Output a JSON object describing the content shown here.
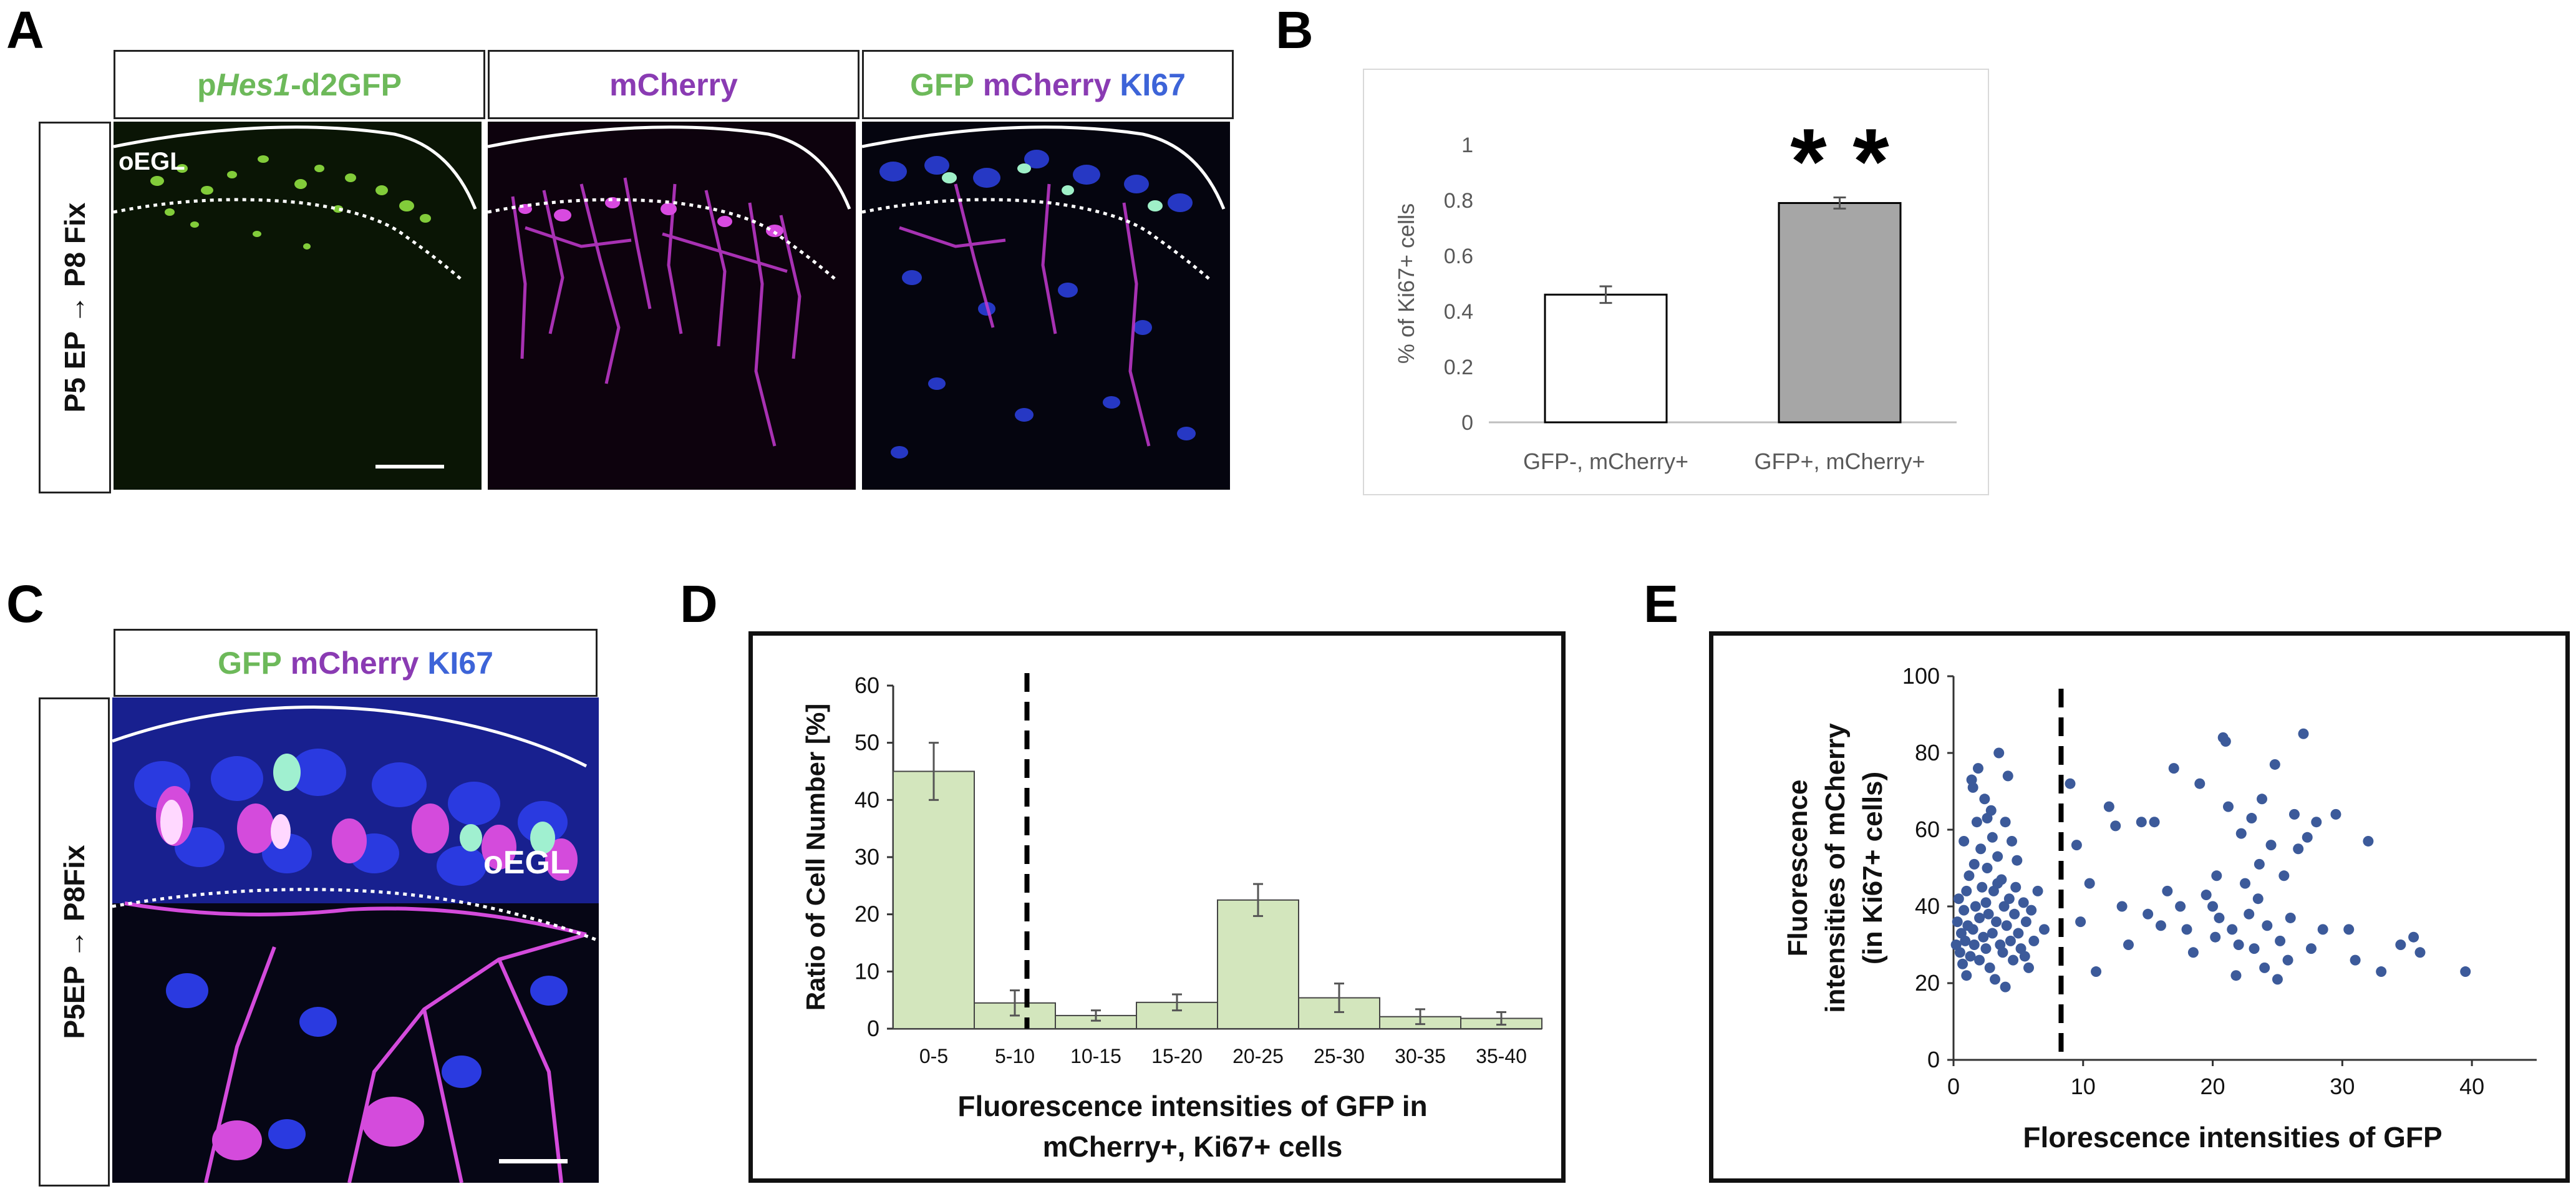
{
  "panels": {
    "A": {
      "letter": "A",
      "side_label": "P5 EP → P8 Fix",
      "col1_prefix": "p",
      "col1_italic": "Hes1",
      "col1_suffix": "-d2GFP",
      "col2": "mCherry",
      "col3_gfp": "GFP",
      "col3_mcherry": "mCherry",
      "col3_ki67": "KI67",
      "region_label": "oEGL"
    },
    "B": {
      "letter": "B",
      "significance": "* *"
    },
    "C": {
      "letter": "C",
      "side_label": "P5EP → P8Fix",
      "top_gfp": "GFP",
      "top_mcherry": "mCherry",
      "top_ki67": "KI67",
      "region_label": "oEGL"
    },
    "D": {
      "letter": "D"
    },
    "E": {
      "letter": "E"
    }
  },
  "colors": {
    "gfp_green": "#6db95a",
    "mcherry_purple": "#8a3bb3",
    "ki67_blue": "#3d64d8",
    "bar_B_gfp_neg": "#ffffff",
    "bar_B_gfp_pos": "#a6a6a6",
    "bar_D": "#d3e6bd",
    "scatter_E": "#3c5a9a"
  },
  "chart_data": [
    {
      "id": "B",
      "type": "bar",
      "categories": [
        "GFP-, mCherry+",
        "GFP+, mCherry+"
      ],
      "values": [
        0.46,
        0.79
      ],
      "errors": [
        0.03,
        0.02
      ],
      "ylabel": "% of Ki67+ cells",
      "ylim": [
        0,
        1
      ],
      "yticks": [
        "0",
        "0.2",
        "0.4",
        "0.6",
        "0.8",
        "1"
      ],
      "grid": false
    },
    {
      "id": "D",
      "type": "bar",
      "categories": [
        "0-5",
        "5-10",
        "10-15",
        "15-20",
        "20-25",
        "25-30",
        "30-35",
        "35-40"
      ],
      "values": [
        45,
        4.5,
        2.3,
        4.6,
        22.5,
        5.4,
        2.1,
        1.8
      ],
      "errors": [
        5,
        2.2,
        0.9,
        1.4,
        2.8,
        2.5,
        1.3,
        1.1
      ],
      "ylabel": "Ratio of Cell Number [%]",
      "xlabel_line1": "Fluorescence intensities of GFP in",
      "xlabel_line2": "mCherry+, Ki67+  cells",
      "ylim": [
        0,
        60
      ],
      "yticks": [
        "0",
        "10",
        "20",
        "30",
        "40",
        "50",
        "60"
      ],
      "threshold_between": [
        0,
        1
      ],
      "grid": false
    },
    {
      "id": "E",
      "type": "scatter",
      "xlabel": "Florescence intensities of GFP",
      "ylabel_line1": "Fluorescence",
      "ylabel_line2": "intensities of mCherry",
      "ylabel_line3": "(in Ki67+ cells)",
      "xlim": [
        0,
        45
      ],
      "ylim": [
        0,
        100
      ],
      "xticks": [
        "0",
        "10",
        "20",
        "30",
        "40"
      ],
      "yticks": [
        "0",
        "20",
        "40",
        "60",
        "80",
        "100"
      ],
      "threshold_x": 8.3,
      "grid": false,
      "points": [
        [
          0.2,
          30
        ],
        [
          0.3,
          36
        ],
        [
          0.4,
          42
        ],
        [
          0.5,
          28
        ],
        [
          0.6,
          33
        ],
        [
          0.7,
          25
        ],
        [
          0.8,
          39
        ],
        [
          0.9,
          31
        ],
        [
          1.0,
          44
        ],
        [
          1.0,
          22
        ],
        [
          1.1,
          35
        ],
        [
          1.2,
          48
        ],
        [
          1.3,
          27
        ],
        [
          1.4,
          73
        ],
        [
          1.5,
          71
        ],
        [
          1.5,
          34
        ],
        [
          1.6,
          30
        ],
        [
          1.7,
          40
        ],
        [
          1.8,
          62
        ],
        [
          1.9,
          76
        ],
        [
          2.0,
          37
        ],
        [
          2.0,
          26
        ],
        [
          2.1,
          55
        ],
        [
          2.2,
          45
        ],
        [
          2.3,
          32
        ],
        [
          2.4,
          68
        ],
        [
          2.5,
          29
        ],
        [
          2.5,
          41
        ],
        [
          2.6,
          50
        ],
        [
          2.7,
          38
        ],
        [
          2.8,
          24
        ],
        [
          2.9,
          65
        ],
        [
          3.0,
          33
        ],
        [
          3.0,
          58
        ],
        [
          3.1,
          44
        ],
        [
          3.2,
          21
        ],
        [
          3.3,
          36
        ],
        [
          3.4,
          53
        ],
        [
          3.5,
          80
        ],
        [
          3.6,
          30
        ],
        [
          3.7,
          47
        ],
        [
          3.8,
          28
        ],
        [
          3.9,
          40
        ],
        [
          4.0,
          62
        ],
        [
          4.0,
          19
        ],
        [
          4.1,
          35
        ],
        [
          4.2,
          74
        ],
        [
          4.3,
          42
        ],
        [
          4.4,
          31
        ],
        [
          4.5,
          57
        ],
        [
          4.6,
          26
        ],
        [
          4.7,
          38
        ],
        [
          4.8,
          45
        ],
        [
          5.0,
          33
        ],
        [
          5.2,
          29
        ],
        [
          5.4,
          41
        ],
        [
          5.6,
          36
        ],
        [
          5.8,
          24
        ],
        [
          6.0,
          39
        ],
        [
          6.2,
          31
        ],
        [
          6.5,
          44
        ],
        [
          7.0,
          34
        ],
        [
          0.8,
          57
        ],
        [
          1.6,
          51
        ],
        [
          2.6,
          63
        ],
        [
          3.4,
          46
        ],
        [
          4.9,
          52
        ],
        [
          5.5,
          27
        ],
        [
          9.0,
          72
        ],
        [
          9.5,
          56
        ],
        [
          9.8,
          36
        ],
        [
          10.5,
          46
        ],
        [
          11.0,
          23
        ],
        [
          12.0,
          66
        ],
        [
          12.5,
          61
        ],
        [
          13.0,
          40
        ],
        [
          13.5,
          30
        ],
        [
          14.5,
          62
        ],
        [
          15.0,
          38
        ],
        [
          15.5,
          62
        ],
        [
          16.0,
          35
        ],
        [
          16.5,
          44
        ],
        [
          17.0,
          76
        ],
        [
          17.5,
          40
        ],
        [
          18.0,
          34
        ],
        [
          18.5,
          28
        ],
        [
          19.0,
          72
        ],
        [
          19.5,
          43
        ],
        [
          20.0,
          40
        ],
        [
          20.2,
          32
        ],
        [
          20.5,
          37
        ],
        [
          20.8,
          84
        ],
        [
          21.0,
          83
        ],
        [
          21.2,
          66
        ],
        [
          21.5,
          34
        ],
        [
          21.8,
          22
        ],
        [
          22.0,
          30
        ],
        [
          22.2,
          59
        ],
        [
          22.5,
          46
        ],
        [
          22.8,
          38
        ],
        [
          23.0,
          63
        ],
        [
          23.2,
          29
        ],
        [
          23.5,
          42
        ],
        [
          23.8,
          68
        ],
        [
          24.0,
          24
        ],
        [
          24.2,
          35
        ],
        [
          24.5,
          56
        ],
        [
          24.8,
          77
        ],
        [
          25.0,
          21
        ],
        [
          25.2,
          31
        ],
        [
          25.5,
          48
        ],
        [
          25.8,
          26
        ],
        [
          26.0,
          37
        ],
        [
          26.3,
          64
        ],
        [
          26.6,
          55
        ],
        [
          27.0,
          85
        ],
        [
          27.3,
          58
        ],
        [
          27.6,
          29
        ],
        [
          28.0,
          62
        ],
        [
          28.5,
          34
        ],
        [
          29.5,
          64
        ],
        [
          30.5,
          34
        ],
        [
          31.0,
          26
        ],
        [
          32.0,
          57
        ],
        [
          33.0,
          23
        ],
        [
          34.5,
          30
        ],
        [
          35.5,
          32
        ],
        [
          36.0,
          28
        ],
        [
          39.5,
          23
        ],
        [
          20.3,
          48
        ],
        [
          23.6,
          51
        ]
      ]
    }
  ]
}
